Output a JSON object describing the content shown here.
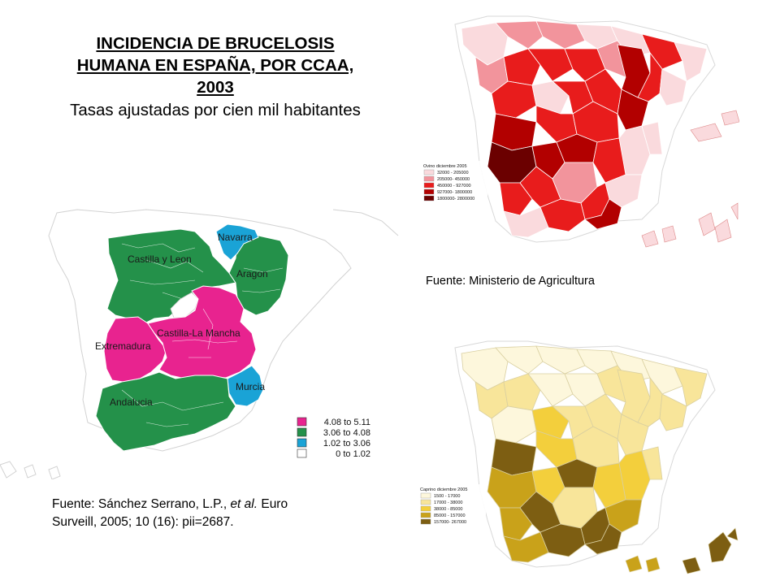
{
  "title": {
    "lines": [
      "INCIDENCIA DE BRUCELOSIS",
      "HUMANA EN ESPAÑA, POR CCAA,",
      "2003"
    ],
    "subtitle": "Tasas ajustadas por cien mil habitantes"
  },
  "incidence_map": {
    "regions": [
      {
        "name": "Navarra",
        "class": "1.02 to 3.06",
        "color": "#1aa3d6"
      },
      {
        "name": "Castilla y Leon",
        "class": "3.06 to 4.08",
        "color": "#24914a"
      },
      {
        "name": "Aragon",
        "class": "3.06 to 4.08",
        "color": "#24914a"
      },
      {
        "name": "Castilla-La Mancha",
        "class": "4.08 to 5.11",
        "color": "#e8238f"
      },
      {
        "name": "Extremadura",
        "class": "4.08 to 5.11",
        "color": "#e8238f"
      },
      {
        "name": "Murcia",
        "class": "1.02 to 3.06",
        "color": "#1aa3d6"
      },
      {
        "name": "Andalucia",
        "class": "3.06 to 4.08",
        "color": "#24914a"
      }
    ],
    "legend": [
      {
        "label": "4.08 to 5.11",
        "color": "#e8238f"
      },
      {
        "label": "3.06 to 4.08",
        "color": "#24914a"
      },
      {
        "label": "1.02 to 3.06",
        "color": "#1aa3d6"
      },
      {
        "label": "0 to 1.02",
        "color": "#ffffff"
      }
    ]
  },
  "ovine_map": {
    "legend_title": "Ovino diciembre  2005",
    "legend": [
      {
        "label": "32000 - 205000",
        "color": "#fadadd"
      },
      {
        "label": "205000- 450000",
        "color": "#f2949c"
      },
      {
        "label": "450000 - 927000",
        "color": "#e81c1c"
      },
      {
        "label": "927000- 1800000",
        "color": "#b20000"
      },
      {
        "label": "1800000- 2800000",
        "color": "#6b0000"
      }
    ]
  },
  "caprine_map": {
    "legend_title": "Caprino diciembre 2005",
    "legend": [
      {
        "label": "1500 - 17000",
        "color": "#fdf7dc"
      },
      {
        "label": "17000 - 38000",
        "color": "#f8e59a"
      },
      {
        "label": "38000 - 85000",
        "color": "#f3cf3c"
      },
      {
        "label": "85000 - 157000",
        "color": "#c9a21a"
      },
      {
        "label": "157000- 267000",
        "color": "#7d5e12"
      }
    ]
  },
  "sources": {
    "agriculture": "Fuente: Ministerio de Agricultura",
    "paper_line1_a": "Fuente: Sánchez Serrano, L.P., ",
    "paper_line1_b": "et al.",
    "paper_line1_c": " Euro",
    "paper_line2": "Surveill, 2005; 10 (16): pii=2687."
  }
}
